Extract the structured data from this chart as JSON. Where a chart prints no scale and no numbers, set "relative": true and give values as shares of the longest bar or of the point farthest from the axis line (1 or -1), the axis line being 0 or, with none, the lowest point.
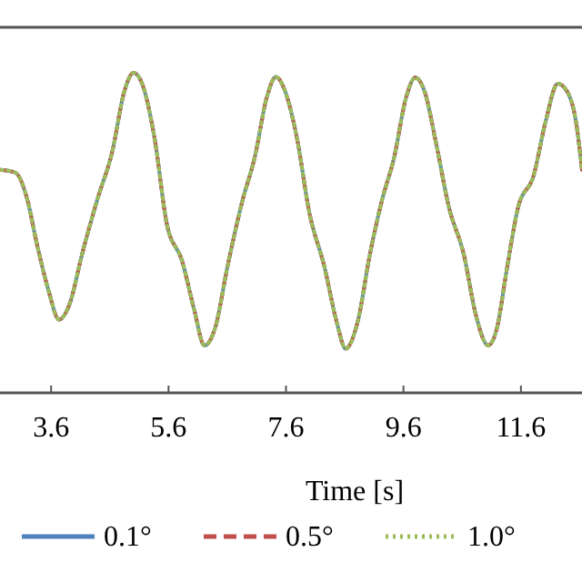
{
  "chart_data": {
    "type": "line",
    "relative": true,
    "xlabel": "Time [s]",
    "xlim": [
      2.73,
      12.64
    ],
    "xticks": [
      3.6,
      5.6,
      7.6,
      9.6,
      11.6
    ],
    "legend": "bottom",
    "grid": false,
    "x": [
      2.733,
      2.991,
      3.198,
      3.352,
      3.559,
      3.734,
      3.92,
      4.126,
      4.384,
      4.642,
      4.849,
      5.004,
      5.158,
      5.365,
      5.571,
      5.829,
      6.035,
      6.211,
      6.397,
      6.603,
      6.861,
      7.067,
      7.274,
      7.429,
      7.583,
      7.79,
      7.996,
      8.254,
      8.461,
      8.615,
      8.822,
      9.028,
      9.235,
      9.441,
      9.647,
      9.802,
      9.957,
      10.163,
      10.37,
      10.628,
      10.834,
      11.041,
      11.196,
      11.35,
      11.557,
      11.815,
      12.021,
      12.227,
      12.382,
      12.537,
      12.64
    ],
    "series": [
      {
        "name": "0.1°",
        "color": "#4f81bd",
        "line_style": "solid",
        "values": [
          0.697,
          0.688,
          0.602,
          0.47,
          0.318,
          0.229,
          0.28,
          0.432,
          0.602,
          0.754,
          0.943,
          1,
          0.962,
          0.792,
          0.527,
          0.413,
          0.261,
          0.148,
          0.205,
          0.394,
          0.602,
          0.735,
          0.924,
          0.987,
          0.943,
          0.792,
          0.564,
          0.394,
          0.223,
          0.138,
          0.223,
          0.432,
          0.602,
          0.735,
          0.924,
          0.985,
          0.943,
          0.773,
          0.583,
          0.432,
          0.242,
          0.148,
          0.205,
          0.375,
          0.583,
          0.678,
          0.848,
          0.966,
          0.943,
          0.848,
          0.697
        ]
      },
      {
        "name": "0.5°",
        "color": "#c0504d",
        "line_style": "dashed",
        "values": [
          0.697,
          0.688,
          0.602,
          0.47,
          0.318,
          0.229,
          0.28,
          0.432,
          0.602,
          0.754,
          0.943,
          1,
          0.962,
          0.792,
          0.527,
          0.413,
          0.261,
          0.148,
          0.205,
          0.394,
          0.602,
          0.735,
          0.924,
          0.987,
          0.943,
          0.792,
          0.564,
          0.394,
          0.223,
          0.138,
          0.223,
          0.432,
          0.602,
          0.735,
          0.924,
          0.985,
          0.943,
          0.773,
          0.583,
          0.432,
          0.242,
          0.148,
          0.205,
          0.375,
          0.583,
          0.678,
          0.848,
          0.966,
          0.943,
          0.848,
          0.697
        ]
      },
      {
        "name": "1.0°",
        "color": "#9bbb59",
        "line_style": "dotted",
        "values": [
          0.697,
          0.688,
          0.602,
          0.47,
          0.318,
          0.229,
          0.28,
          0.432,
          0.602,
          0.754,
          0.943,
          1,
          0.962,
          0.792,
          0.527,
          0.413,
          0.261,
          0.148,
          0.205,
          0.394,
          0.602,
          0.735,
          0.924,
          0.987,
          0.943,
          0.792,
          0.564,
          0.394,
          0.223,
          0.138,
          0.223,
          0.432,
          0.602,
          0.735,
          0.924,
          0.985,
          0.943,
          0.773,
          0.583,
          0.432,
          0.242,
          0.148,
          0.205,
          0.375,
          0.583,
          0.678,
          0.848,
          0.966,
          0.943,
          0.848,
          0.697
        ]
      }
    ]
  }
}
